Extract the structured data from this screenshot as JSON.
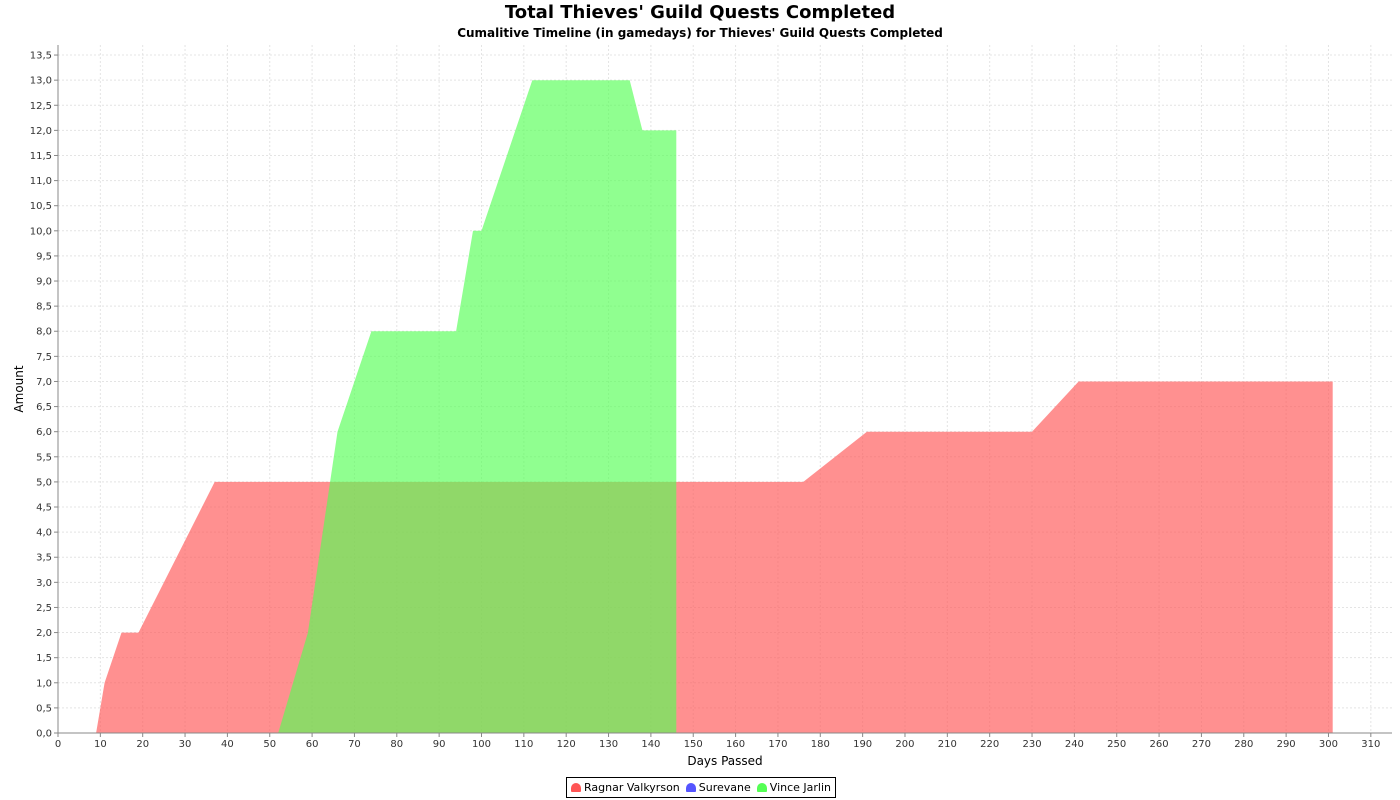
{
  "chart_data": {
    "type": "area",
    "title": "Total Thieves' Guild Quests Completed",
    "subtitle": "Cumalitive Timeline (in gamedays) for Thieves' Guild Quests Completed",
    "xlabel": "Days Passed",
    "ylabel": "Amount",
    "xlim": [
      0,
      315
    ],
    "ylim": [
      0,
      13.7
    ],
    "x_ticks": [
      0,
      10,
      20,
      30,
      40,
      50,
      60,
      70,
      80,
      90,
      100,
      110,
      120,
      130,
      140,
      150,
      160,
      170,
      180,
      190,
      200,
      210,
      220,
      230,
      240,
      250,
      260,
      270,
      280,
      290,
      300,
      310
    ],
    "y_ticks": [
      "0,0",
      "0,5",
      "1,0",
      "1,5",
      "2,0",
      "2,5",
      "3,0",
      "3,5",
      "4,0",
      "4,5",
      "5,0",
      "5,5",
      "6,0",
      "6,5",
      "7,0",
      "7,5",
      "8,0",
      "8,5",
      "9,0",
      "9,5",
      "10,0",
      "10,5",
      "11,0",
      "11,5",
      "12,0",
      "12,5",
      "13,0",
      "13,5"
    ],
    "grid": true,
    "legend_position": "bottom",
    "series": [
      {
        "name": "Ragnar Valkyrson",
        "color": "#ff5555",
        "points": [
          [
            9,
            0
          ],
          [
            11,
            1
          ],
          [
            15,
            2
          ],
          [
            19,
            2
          ],
          [
            37,
            5
          ],
          [
            176,
            5
          ],
          [
            191,
            6
          ],
          [
            230,
            6
          ],
          [
            241,
            7
          ],
          [
            301,
            7
          ],
          [
            301,
            0
          ]
        ]
      },
      {
        "name": "Surevane",
        "color": "#5555ff",
        "points": []
      },
      {
        "name": "Vince Jarlin",
        "color": "#55ff55",
        "points": [
          [
            52,
            0
          ],
          [
            59,
            2
          ],
          [
            66,
            6
          ],
          [
            74,
            8
          ],
          [
            94,
            8
          ],
          [
            98,
            10
          ],
          [
            100,
            10
          ],
          [
            112,
            13
          ],
          [
            135,
            13
          ],
          [
            138,
            12
          ],
          [
            146,
            12
          ],
          [
            146,
            0
          ]
        ]
      }
    ]
  }
}
